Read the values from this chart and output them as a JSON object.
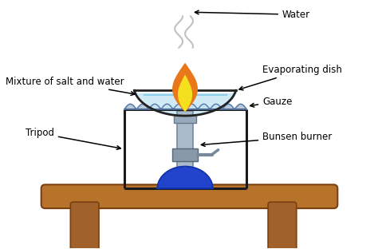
{
  "background_color": "#ffffff",
  "labels": {
    "water": "Water",
    "evaporating_dish": "Evaporating dish",
    "gauze": "Gauze",
    "mixture": "Mixture of salt and water",
    "tripod": "Tripod",
    "bunsen": "Bunsen burner"
  },
  "colors": {
    "tripod_frame": "#1a1a1a",
    "gauze_line": "#7799bb",
    "dish_outline": "#222222",
    "dish_fill": "#c8e8f5",
    "flame_orange": "#e8781a",
    "flame_yellow": "#f5e020",
    "burner_body": "#8899aa",
    "burner_collar": "#778899",
    "burner_base": "#2244cc",
    "burner_base_dark": "#1133aa",
    "table_top": "#b8732a",
    "table_legs": "#a0622a",
    "steam": "#bbbbbb",
    "text": "#000000"
  },
  "figsize": [
    4.74,
    3.12
  ],
  "dpi": 100
}
